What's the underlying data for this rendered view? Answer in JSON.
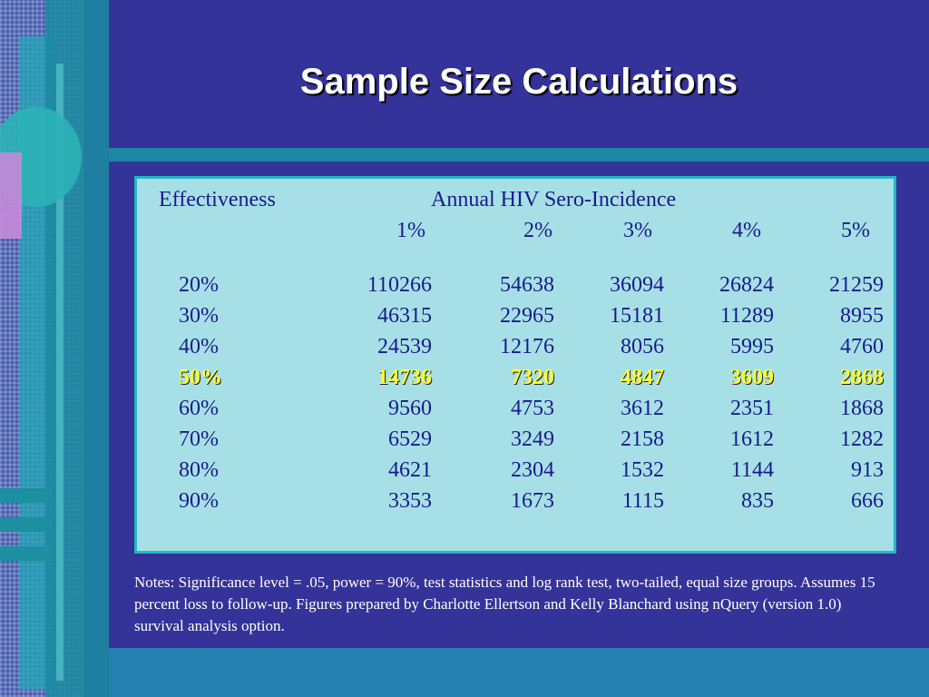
{
  "slide": {
    "title": "Sample Size Calculations",
    "colors": {
      "background": "#333399",
      "table_bg": "#a6e0e6",
      "table_text": "#1a1a8c",
      "highlight": "#ffff33"
    }
  },
  "table": {
    "row_header": "Effectiveness",
    "column_group_header": "Annual HIV Sero-Incidence",
    "columns": [
      "1%",
      "2%",
      "3%",
      "4%",
      "5%"
    ],
    "rows": [
      {
        "label": "20%",
        "values": [
          "110266",
          "54638",
          "36094",
          "26824",
          "21259"
        ]
      },
      {
        "label": "30%",
        "values": [
          "46315",
          "22965",
          "15181",
          "11289",
          "8955"
        ]
      },
      {
        "label": "40%",
        "values": [
          "24539",
          "12176",
          "8056",
          "5995",
          "4760"
        ]
      },
      {
        "label": "50%",
        "values": [
          "14736",
          "7320",
          "4847",
          "3609",
          "2868"
        ],
        "highlighted": true
      },
      {
        "label": "60%",
        "values": [
          "9560",
          "4753",
          "3612",
          "2351",
          "1868"
        ]
      },
      {
        "label": "70%",
        "values": [
          "6529",
          "3249",
          "2158",
          "1612",
          "1282"
        ]
      },
      {
        "label": "80%",
        "values": [
          "4621",
          "2304",
          "1532",
          "1144",
          "913"
        ]
      },
      {
        "label": "90%",
        "values": [
          "3353",
          "1673",
          "1115",
          "835",
          "666"
        ]
      }
    ]
  },
  "notes": "Notes: Significance level = .05, power = 90%, test statistics and log rank test, two-tailed, equal size groups. Assumes 15 percent loss to follow-up. Figures prepared by Charlotte Ellertson and Kelly Blanchard using nQuery (version 1.0) survival analysis option."
}
